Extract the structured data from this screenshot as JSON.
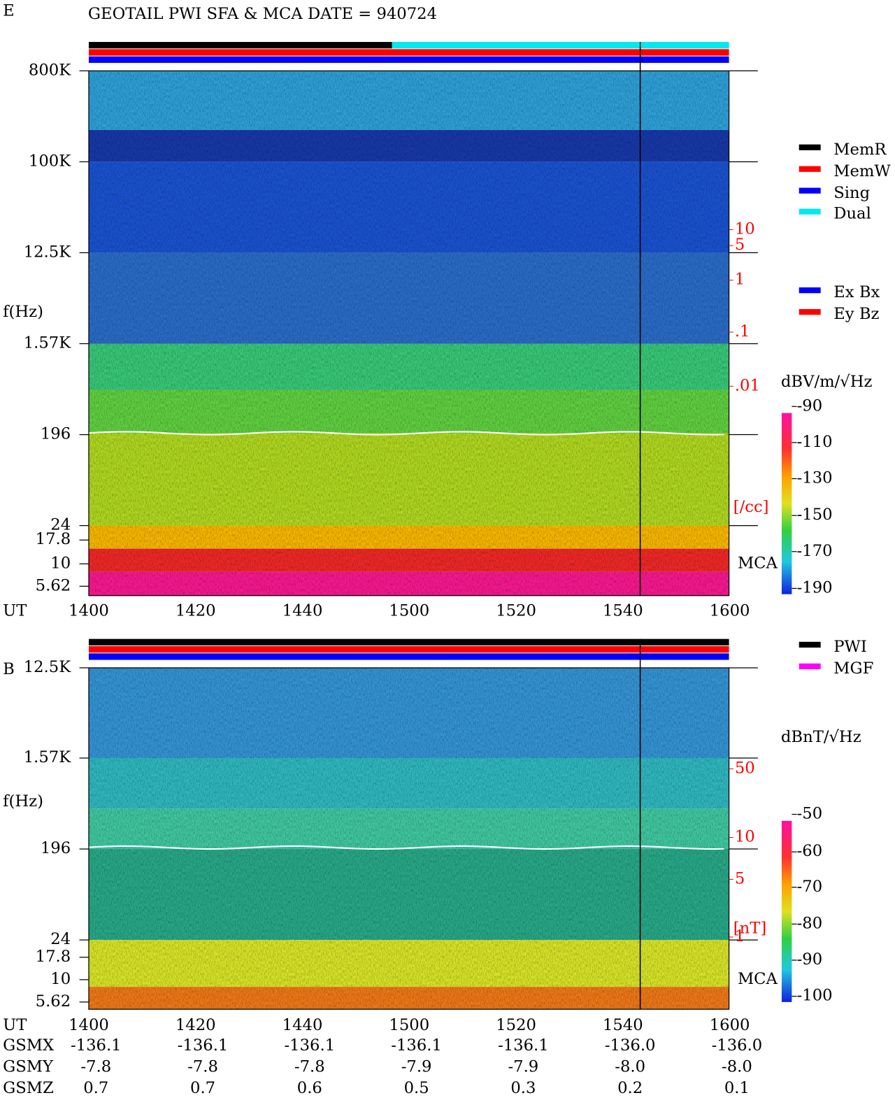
{
  "title": "GEOTAIL  PWI SFA & MCA   DATE = 940724",
  "panels": [
    {
      "label": "E",
      "y_label": "f(Hz)",
      "x_label": "UT",
      "yticks": [
        "800K",
        "100K",
        "12.5K",
        "1.57K",
        "196",
        "24",
        "17.8",
        "10",
        "5.62"
      ],
      "xticks": [
        "1400",
        "1420",
        "1440",
        "1500",
        "1520",
        "1540",
        "1600"
      ],
      "right_ticks": [
        "10",
        "5",
        "1",
        ".1",
        ".01"
      ],
      "right_unit": "[/cc]",
      "mca": "MCA",
      "legend": [
        {
          "name": "MemR",
          "color": "#000000"
        },
        {
          "name": "MemW",
          "color": "#ff0000"
        },
        {
          "name": "Sing",
          "color": "#0000ff"
        },
        {
          "name": "Dual",
          "color": "#00e8f0"
        }
      ],
      "legend2": [
        {
          "name": "Ex Bx",
          "color": "#0000ff"
        },
        {
          "name": "Ey Bz",
          "color": "#ff0000"
        }
      ],
      "colorbar_title": "dBV/m/√Hz",
      "colorbar_ticks": [
        "-90",
        "-110",
        "-130",
        "-150",
        "-170",
        "-190"
      ]
    },
    {
      "label": "B",
      "y_label": "f(Hz)",
      "x_label": "UT",
      "yticks": [
        "12.5K",
        "1.57K",
        "196",
        "24",
        "17.8",
        "10",
        "5.62"
      ],
      "xticks": [
        "1400",
        "1420",
        "1440",
        "1500",
        "1520",
        "1540",
        "1600"
      ],
      "right_ticks": [
        "50",
        "10",
        "5",
        "1"
      ],
      "right_unit": "[nT]",
      "mca": "MCA",
      "legend": [
        {
          "name": "PWI",
          "color": "#000000"
        },
        {
          "name": "MGF",
          "color": "#ff00ff"
        }
      ],
      "colorbar_title": "dBnT/√Hz",
      "colorbar_ticks": [
        "-50",
        "-60",
        "-70",
        "-80",
        "-90",
        "-100"
      ]
    }
  ],
  "orbit": [
    {
      "name": "GSMX",
      "values": [
        "-136.1",
        "-136.1",
        "-136.1",
        "-136.1",
        "-136.1",
        "-136.0",
        "-136.0"
      ]
    },
    {
      "name": "GSMY",
      "values": [
        "-7.8",
        "-7.8",
        "-7.8",
        "-7.9",
        "-7.9",
        "-8.0",
        "-8.0"
      ]
    },
    {
      "name": "GSMZ",
      "values": [
        "0.7",
        "0.7",
        "0.6",
        "0.5",
        "0.3",
        "0.2",
        "0.1"
      ]
    }
  ]
}
